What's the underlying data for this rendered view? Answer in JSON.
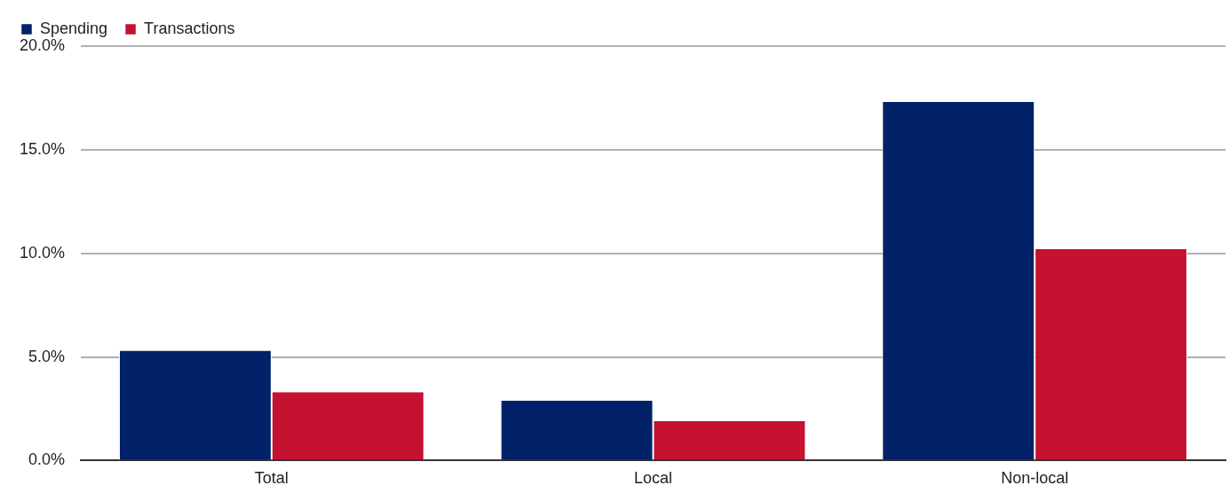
{
  "chart_data": {
    "type": "bar",
    "categories": [
      "Total",
      "Local",
      "Non-local"
    ],
    "series": [
      {
        "name": "Spending",
        "color": "#012169",
        "values": [
          5.3,
          2.9,
          17.3
        ]
      },
      {
        "name": "Transactions",
        "color": "#c41230",
        "values": [
          3.3,
          1.9,
          10.2
        ]
      }
    ],
    "ylim": [
      0,
      20
    ],
    "yticks": [
      {
        "value": 0,
        "label": "0.0%"
      },
      {
        "value": 5,
        "label": "5.0%"
      },
      {
        "value": 10,
        "label": "10.0%"
      },
      {
        "value": 15,
        "label": "15.0%"
      },
      {
        "value": 20,
        "label": "20.0%"
      }
    ],
    "grid": "y",
    "legend": "top left"
  }
}
